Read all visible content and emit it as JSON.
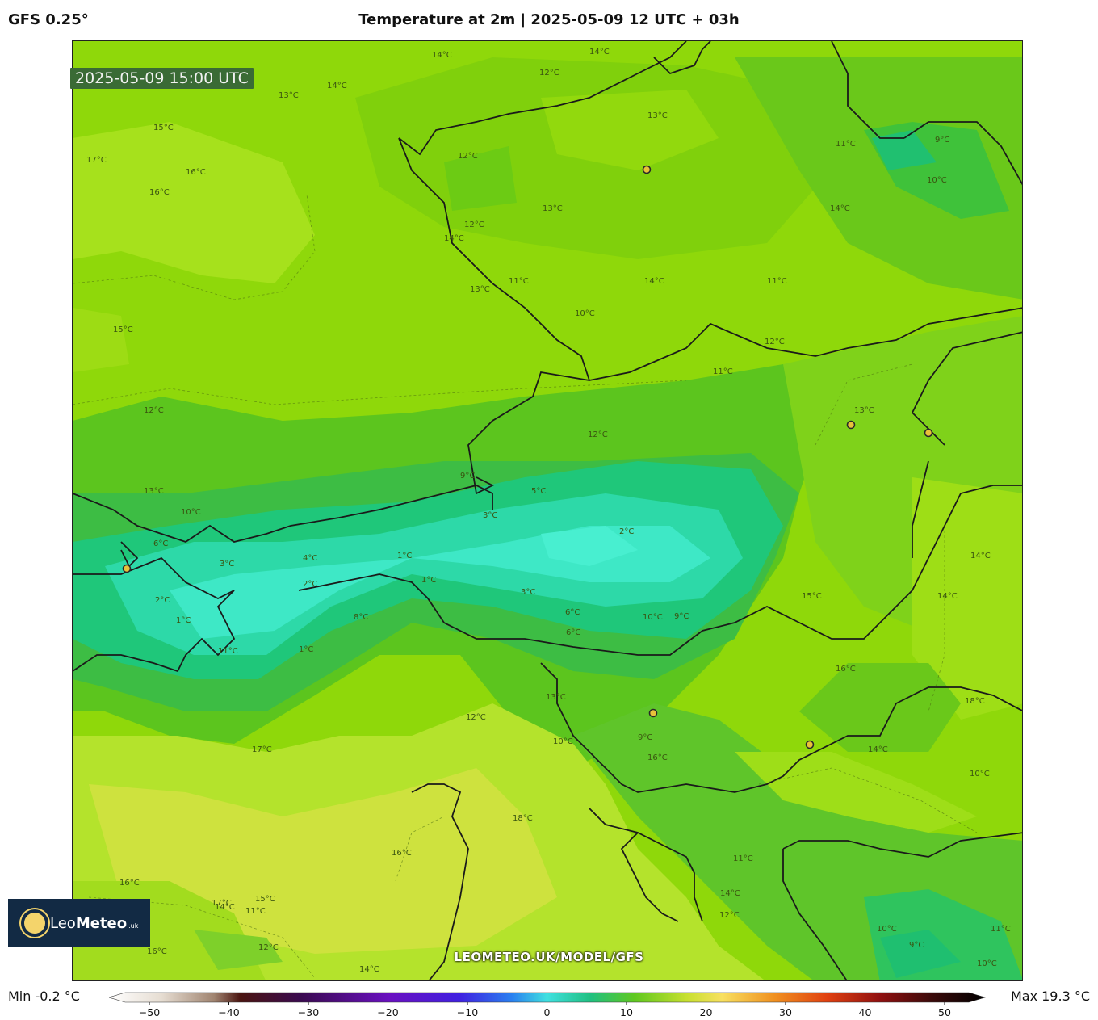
{
  "header": {
    "model": "GFS 0.25°",
    "title": "Temperature at 2m | 2025-05-09 12 UTC + 03h"
  },
  "map": {
    "timestamp": "2025-05-09 15:00 UTC",
    "watermark": "LEOMETEO.UK/MODEL/GFS",
    "contour_labels": [
      "14°C",
      "14°C",
      "13°C",
      "12°C",
      "14°C",
      "13°C",
      "15°C",
      "17°C",
      "16°C",
      "16°C",
      "14°C",
      "12°C",
      "13°C",
      "12°C",
      "11°C",
      "13°C",
      "14°C",
      "11°C",
      "10°C",
      "11°C",
      "12°C",
      "13°C",
      "14°C",
      "11°C",
      "9°C",
      "10°C",
      "15°C",
      "12°C",
      "12°C",
      "13°C",
      "10°C",
      "9°C",
      "5°C",
      "3°C",
      "2°C",
      "6°C",
      "3°C",
      "4°C",
      "1°C",
      "2°C",
      "1°C",
      "2°C",
      "3°C",
      "6°C",
      "6°C",
      "10°C",
      "9°C",
      "8°C",
      "1°C",
      "11°C",
      "1°C",
      "13°C",
      "15°C",
      "14°C",
      "14°C",
      "16°C",
      "18°C",
      "12°C",
      "17°C",
      "18°C",
      "16°C",
      "10°C",
      "9°C",
      "16°C",
      "14°C",
      "10°C",
      "11°C",
      "14°C",
      "12°C",
      "15°C",
      "16°C",
      "17°C",
      "12°C",
      "11°C",
      "14°C",
      "16°C",
      "14°C",
      "10°C",
      "9°C",
      "11°C",
      "10°C"
    ],
    "cities": 7,
    "background_color": "#8fd80a"
  },
  "logo": {
    "brand_light": "Leo",
    "brand_bold": "Meteo",
    "suffix": ".uk"
  },
  "colorbar": {
    "min_label": "Min -0.2 °C",
    "max_label": "Max 19.3 °C",
    "ticks": [
      "−50",
      "−40",
      "−30",
      "−20",
      "−10",
      "0",
      "10",
      "20",
      "30",
      "40",
      "50"
    ],
    "range": [
      -50,
      50
    ]
  }
}
